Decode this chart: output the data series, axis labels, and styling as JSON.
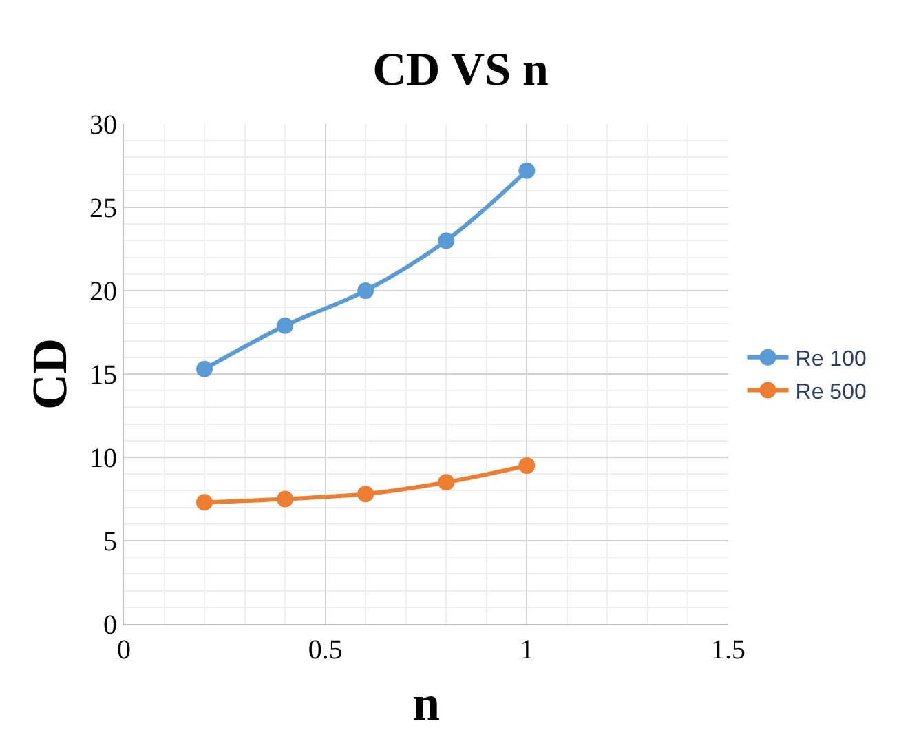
{
  "chart_data": {
    "type": "line",
    "title": "CD VS n",
    "xlabel": "n",
    "ylabel": "CD",
    "x": [
      0.2,
      0.4,
      0.6,
      0.8,
      1
    ],
    "series": [
      {
        "name": "Re 100",
        "color": "#5b9bd5",
        "values": [
          15.3,
          17.9,
          20.0,
          23.0,
          27.2
        ]
      },
      {
        "name": "Re 500",
        "color": "#ed7d31",
        "values": [
          7.3,
          7.5,
          7.8,
          8.5,
          9.5
        ]
      }
    ],
    "xlim": [
      0,
      1.5
    ],
    "xticks": [
      0,
      0.5,
      1,
      1.5
    ],
    "ylim": [
      0,
      30
    ],
    "yticks": [
      0,
      5,
      10,
      15,
      20,
      25,
      30
    ],
    "grid": true,
    "legend": "right",
    "marker": "circle",
    "line_style": "solid"
  }
}
